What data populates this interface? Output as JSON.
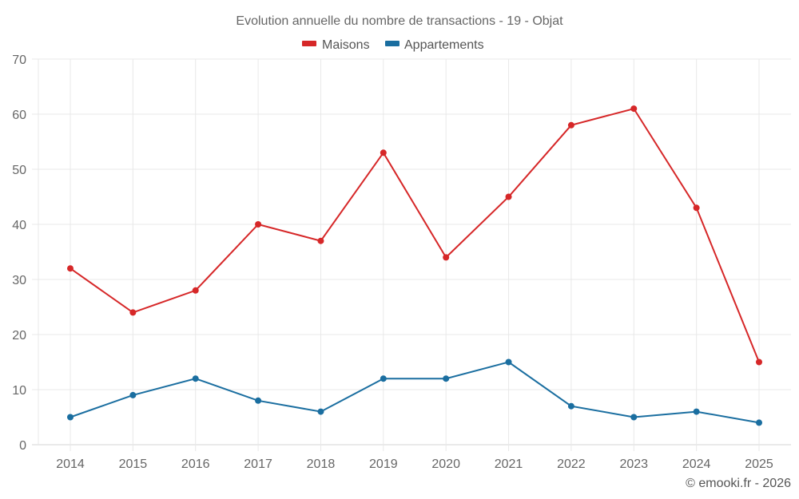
{
  "chart_data": {
    "type": "line",
    "title": "Evolution annuelle du nombre de transactions - 19 - Objat",
    "xlabel": "",
    "ylabel": "",
    "x": [
      "2014",
      "2015",
      "2016",
      "2017",
      "2018",
      "2019",
      "2020",
      "2021",
      "2022",
      "2023",
      "2024",
      "2025"
    ],
    "ylim": [
      0,
      70
    ],
    "yticks": [
      0,
      10,
      20,
      30,
      40,
      50,
      60,
      70
    ],
    "grid": true,
    "legend_position": "top-center",
    "series": [
      {
        "name": "Maisons",
        "color": "#d62728",
        "values": [
          32,
          24,
          28,
          40,
          37,
          53,
          34,
          45,
          58,
          61,
          43,
          15
        ]
      },
      {
        "name": "Appartements",
        "color": "#1a6ea0",
        "values": [
          5,
          9,
          12,
          8,
          6,
          12,
          12,
          15,
          7,
          5,
          6,
          4
        ]
      }
    ],
    "credit": "© emooki.fr - 2026"
  }
}
